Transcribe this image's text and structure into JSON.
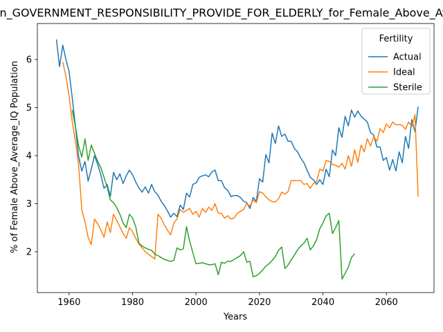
{
  "chart_data": {
    "type": "line",
    "title": "Opin_GOVERNMENT_RESPONSIBILITY_PROVIDE_FOR_ELDERLY_for_Female_Above_Average_IQ",
    "xlabel": "Years",
    "ylabel": "% of Female Above_Average_IQ Population",
    "xlim": [
      1950,
      2075
    ],
    "ylim": [
      1.15,
      6.75
    ],
    "xticks": [
      1960,
      1980,
      2000,
      2020,
      2040,
      2060
    ],
    "yticks": [
      2,
      3,
      4,
      5,
      6
    ],
    "grid": false,
    "legend": {
      "title": "Fertility",
      "placement": "top-right"
    },
    "series": [
      {
        "name": "Actual",
        "color": "#1f77b4",
        "points": [
          [
            1956,
            6.42
          ],
          [
            1957,
            5.85
          ],
          [
            1958,
            6.3
          ],
          [
            1959,
            6.0
          ],
          [
            1960,
            5.75
          ],
          [
            1961,
            5.2
          ],
          [
            1962,
            4.6
          ],
          [
            1963,
            3.98
          ],
          [
            1964,
            3.68
          ],
          [
            1965,
            3.88
          ],
          [
            1966,
            3.47
          ],
          [
            1967,
            3.72
          ],
          [
            1968,
            4.0
          ],
          [
            1969,
            3.82
          ],
          [
            1970,
            3.6
          ],
          [
            1971,
            3.32
          ],
          [
            1972,
            3.4
          ],
          [
            1973,
            3.15
          ],
          [
            1974,
            3.65
          ],
          [
            1975,
            3.5
          ],
          [
            1976,
            3.62
          ],
          [
            1977,
            3.42
          ],
          [
            1978,
            3.58
          ],
          [
            1979,
            3.7
          ],
          [
            1980,
            3.6
          ],
          [
            1981,
            3.45
          ],
          [
            1982,
            3.33
          ],
          [
            1983,
            3.24
          ],
          [
            1984,
            3.35
          ],
          [
            1985,
            3.22
          ],
          [
            1986,
            3.4
          ],
          [
            1987,
            3.25
          ],
          [
            1988,
            3.18
          ],
          [
            1989,
            3.05
          ],
          [
            1990,
            2.96
          ],
          [
            1991,
            2.85
          ],
          [
            1992,
            2.72
          ],
          [
            1993,
            2.8
          ],
          [
            1994,
            2.73
          ],
          [
            1995,
            2.97
          ],
          [
            1996,
            2.88
          ],
          [
            1997,
            3.22
          ],
          [
            1998,
            3.14
          ],
          [
            1999,
            3.4
          ],
          [
            2000,
            3.43
          ],
          [
            2001,
            3.55
          ],
          [
            2002,
            3.58
          ],
          [
            2003,
            3.6
          ],
          [
            2004,
            3.56
          ],
          [
            2005,
            3.66
          ],
          [
            2006,
            3.7
          ],
          [
            2007,
            3.48
          ],
          [
            2008,
            3.48
          ],
          [
            2009,
            3.33
          ],
          [
            2010,
            3.28
          ],
          [
            2011,
            3.15
          ],
          [
            2012,
            3.17
          ],
          [
            2013,
            3.17
          ],
          [
            2014,
            3.13
          ],
          [
            2015,
            3.05
          ],
          [
            2016,
            3.02
          ],
          [
            2017,
            2.9
          ],
          [
            2018,
            3.13
          ],
          [
            2019,
            3.05
          ],
          [
            2020,
            3.52
          ],
          [
            2021,
            3.45
          ],
          [
            2022,
            4.02
          ],
          [
            2023,
            3.85
          ],
          [
            2024,
            4.47
          ],
          [
            2025,
            4.25
          ],
          [
            2026,
            4.62
          ],
          [
            2027,
            4.4
          ],
          [
            2028,
            4.45
          ],
          [
            2029,
            4.3
          ],
          [
            2030,
            4.3
          ],
          [
            2031,
            4.15
          ],
          [
            2032,
            4.08
          ],
          [
            2033,
            3.95
          ],
          [
            2034,
            3.85
          ],
          [
            2035,
            3.7
          ],
          [
            2036,
            3.55
          ],
          [
            2037,
            3.5
          ],
          [
            2038,
            3.4
          ],
          [
            2039,
            3.5
          ],
          [
            2040,
            3.4
          ],
          [
            2041,
            3.72
          ],
          [
            2042,
            3.56
          ],
          [
            2043,
            4.12
          ],
          [
            2044,
            4.0
          ],
          [
            2045,
            4.58
          ],
          [
            2046,
            4.38
          ],
          [
            2047,
            4.82
          ],
          [
            2048,
            4.62
          ],
          [
            2049,
            4.95
          ],
          [
            2050,
            4.8
          ],
          [
            2051,
            4.93
          ],
          [
            2052,
            4.82
          ],
          [
            2053,
            4.76
          ],
          [
            2054,
            4.7
          ],
          [
            2055,
            4.48
          ],
          [
            2056,
            4.43
          ],
          [
            2057,
            4.18
          ],
          [
            2058,
            4.18
          ],
          [
            2059,
            3.9
          ],
          [
            2060,
            3.96
          ],
          [
            2061,
            3.7
          ],
          [
            2062,
            3.92
          ],
          [
            2063,
            3.68
          ],
          [
            2064,
            4.08
          ],
          [
            2065,
            3.85
          ],
          [
            2066,
            4.4
          ],
          [
            2067,
            4.15
          ],
          [
            2068,
            4.75
          ],
          [
            2069,
            4.5
          ],
          [
            2070,
            5.02
          ]
        ]
      },
      {
        "name": "Ideal",
        "color": "#ff7f0e",
        "points": [
          [
            1958,
            5.95
          ],
          [
            1959,
            5.65
          ],
          [
            1960,
            5.25
          ],
          [
            1961,
            4.7
          ],
          [
            1962,
            4.3
          ],
          [
            1963,
            3.8
          ],
          [
            1964,
            2.87
          ],
          [
            1965,
            2.62
          ],
          [
            1966,
            2.3
          ],
          [
            1967,
            2.15
          ],
          [
            1968,
            2.68
          ],
          [
            1969,
            2.58
          ],
          [
            1970,
            2.45
          ],
          [
            1971,
            2.3
          ],
          [
            1972,
            2.62
          ],
          [
            1973,
            2.4
          ],
          [
            1974,
            2.78
          ],
          [
            1975,
            2.65
          ],
          [
            1976,
            2.52
          ],
          [
            1977,
            2.38
          ],
          [
            1978,
            2.28
          ],
          [
            1979,
            2.5
          ],
          [
            1980,
            2.42
          ],
          [
            1981,
            2.28
          ],
          [
            1982,
            2.16
          ],
          [
            1983,
            2.08
          ],
          [
            1984,
            2.0
          ],
          [
            1985,
            1.95
          ],
          [
            1986,
            1.9
          ],
          [
            1987,
            1.85
          ],
          [
            1988,
            2.78
          ],
          [
            1989,
            2.7
          ],
          [
            1990,
            2.56
          ],
          [
            1991,
            2.45
          ],
          [
            1992,
            2.35
          ],
          [
            1993,
            2.6
          ],
          [
            1994,
            2.68
          ],
          [
            1995,
            2.88
          ],
          [
            1996,
            2.82
          ],
          [
            1997,
            2.86
          ],
          [
            1998,
            2.9
          ],
          [
            1999,
            2.78
          ],
          [
            2000,
            2.84
          ],
          [
            2001,
            2.72
          ],
          [
            2002,
            2.9
          ],
          [
            2003,
            2.82
          ],
          [
            2004,
            2.93
          ],
          [
            2005,
            2.86
          ],
          [
            2006,
            3.0
          ],
          [
            2007,
            2.8
          ],
          [
            2008,
            2.8
          ],
          [
            2009,
            2.7
          ],
          [
            2010,
            2.75
          ],
          [
            2011,
            2.68
          ],
          [
            2012,
            2.7
          ],
          [
            2013,
            2.8
          ],
          [
            2014,
            2.84
          ],
          [
            2015,
            2.88
          ],
          [
            2016,
            3.0
          ],
          [
            2017,
            2.95
          ],
          [
            2018,
            3.08
          ],
          [
            2019,
            3.02
          ],
          [
            2020,
            3.25
          ],
          [
            2021,
            3.22
          ],
          [
            2022,
            3.15
          ],
          [
            2023,
            3.08
          ],
          [
            2024,
            3.04
          ],
          [
            2025,
            3.04
          ],
          [
            2026,
            3.1
          ],
          [
            2027,
            3.24
          ],
          [
            2028,
            3.2
          ],
          [
            2029,
            3.25
          ],
          [
            2030,
            3.48
          ],
          [
            2031,
            3.48
          ],
          [
            2032,
            3.48
          ],
          [
            2033,
            3.48
          ],
          [
            2034,
            3.4
          ],
          [
            2035,
            3.42
          ],
          [
            2036,
            3.32
          ],
          [
            2037,
            3.42
          ],
          [
            2038,
            3.46
          ],
          [
            2039,
            3.72
          ],
          [
            2040,
            3.68
          ],
          [
            2041,
            3.9
          ],
          [
            2042,
            3.88
          ],
          [
            2043,
            3.82
          ],
          [
            2044,
            3.8
          ],
          [
            2045,
            3.76
          ],
          [
            2046,
            3.84
          ],
          [
            2047,
            3.72
          ],
          [
            2048,
            4.0
          ],
          [
            2049,
            3.78
          ],
          [
            2050,
            4.12
          ],
          [
            2051,
            3.86
          ],
          [
            2052,
            4.22
          ],
          [
            2053,
            4.08
          ],
          [
            2054,
            4.35
          ],
          [
            2055,
            4.2
          ],
          [
            2056,
            4.4
          ],
          [
            2057,
            4.3
          ],
          [
            2058,
            4.56
          ],
          [
            2059,
            4.48
          ],
          [
            2060,
            4.66
          ],
          [
            2061,
            4.58
          ],
          [
            2062,
            4.7
          ],
          [
            2063,
            4.64
          ],
          [
            2064,
            4.65
          ],
          [
            2065,
            4.63
          ],
          [
            2066,
            4.55
          ],
          [
            2067,
            4.7
          ],
          [
            2068,
            4.6
          ],
          [
            2069,
            4.85
          ],
          [
            2070,
            3.15
          ]
        ]
      },
      {
        "name": "Sterile",
        "color": "#2ca02c",
        "points": [
          [
            1961,
            4.95
          ],
          [
            1962,
            4.6
          ],
          [
            1963,
            4.2
          ],
          [
            1964,
            3.97
          ],
          [
            1965,
            4.35
          ],
          [
            1966,
            3.9
          ],
          [
            1967,
            4.22
          ],
          [
            1968,
            4.05
          ],
          [
            1969,
            3.88
          ],
          [
            1970,
            3.75
          ],
          [
            1971,
            3.55
          ],
          [
            1972,
            3.35
          ],
          [
            1973,
            3.08
          ],
          [
            1974,
            3.02
          ],
          [
            1975,
            2.92
          ],
          [
            1976,
            2.78
          ],
          [
            1977,
            2.6
          ],
          [
            1978,
            2.5
          ],
          [
            1979,
            2.78
          ],
          [
            1980,
            2.7
          ],
          [
            1981,
            2.52
          ],
          [
            1982,
            2.18
          ],
          [
            1983,
            2.12
          ],
          [
            1984,
            2.08
          ],
          [
            1985,
            2.05
          ],
          [
            1986,
            2.03
          ],
          [
            1987,
            1.95
          ],
          [
            1988,
            1.92
          ],
          [
            1989,
            1.88
          ],
          [
            1990,
            1.84
          ],
          [
            1991,
            1.82
          ],
          [
            1992,
            1.8
          ],
          [
            1993,
            1.82
          ],
          [
            1994,
            2.08
          ],
          [
            1995,
            2.04
          ],
          [
            1996,
            2.06
          ],
          [
            1997,
            2.52
          ],
          [
            1998,
            2.22
          ],
          [
            1999,
            1.98
          ],
          [
            2000,
            1.75
          ],
          [
            2001,
            1.76
          ],
          [
            2002,
            1.77
          ],
          [
            2003,
            1.75
          ],
          [
            2004,
            1.73
          ],
          [
            2005,
            1.73
          ],
          [
            2006,
            1.75
          ],
          [
            2007,
            1.52
          ],
          [
            2008,
            1.78
          ],
          [
            2009,
            1.76
          ],
          [
            2010,
            1.8
          ],
          [
            2011,
            1.8
          ],
          [
            2012,
            1.84
          ],
          [
            2013,
            1.88
          ],
          [
            2014,
            1.92
          ],
          [
            2015,
            2.0
          ],
          [
            2016,
            1.78
          ],
          [
            2017,
            1.8
          ],
          [
            2018,
            1.48
          ],
          [
            2019,
            1.5
          ],
          [
            2020,
            1.55
          ],
          [
            2021,
            1.62
          ],
          [
            2022,
            1.7
          ],
          [
            2023,
            1.75
          ],
          [
            2024,
            1.82
          ],
          [
            2025,
            1.9
          ],
          [
            2026,
            2.03
          ],
          [
            2027,
            2.1
          ],
          [
            2028,
            1.65
          ],
          [
            2029,
            1.72
          ],
          [
            2030,
            1.83
          ],
          [
            2031,
            1.93
          ],
          [
            2032,
            2.04
          ],
          [
            2033,
            2.12
          ],
          [
            2034,
            2.18
          ],
          [
            2035,
            2.28
          ],
          [
            2036,
            2.04
          ],
          [
            2037,
            2.12
          ],
          [
            2038,
            2.25
          ],
          [
            2039,
            2.48
          ],
          [
            2040,
            2.6
          ],
          [
            2041,
            2.75
          ],
          [
            2042,
            2.8
          ],
          [
            2043,
            2.38
          ],
          [
            2044,
            2.5
          ],
          [
            2045,
            2.65
          ],
          [
            2046,
            1.43
          ],
          [
            2047,
            1.55
          ],
          [
            2048,
            1.68
          ],
          [
            2049,
            1.88
          ],
          [
            2050,
            1.96
          ]
        ]
      }
    ]
  }
}
